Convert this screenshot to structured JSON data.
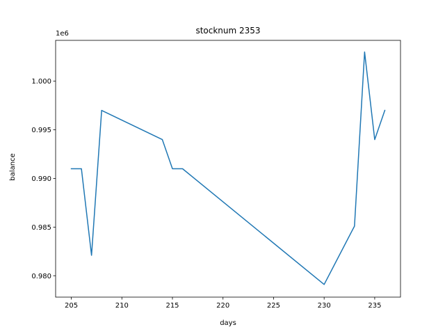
{
  "chart_data": {
    "type": "line",
    "title": "stocknum 2353",
    "xlabel": "days",
    "ylabel": "balance",
    "y_offset_text": "1e6",
    "xlim": [
      203.45,
      237.55
    ],
    "ylim": [
      977800,
      1004200
    ],
    "x_ticks": [
      205,
      210,
      215,
      220,
      225,
      230,
      235
    ],
    "x_tick_labels": [
      "205",
      "210",
      "215",
      "220",
      "225",
      "230",
      "235"
    ],
    "y_ticks": [
      980000,
      985000,
      990000,
      995000,
      1000000
    ],
    "y_tick_labels": [
      "0.980",
      "0.985",
      "0.990",
      "0.995",
      "1.000"
    ],
    "grid": false,
    "series": [
      {
        "color": "#1f77b4",
        "x": [
          205,
          206,
          207,
          208,
          214,
          215,
          216,
          230,
          233,
          234,
          235,
          236
        ],
        "y": [
          991000,
          991000,
          982100,
          997000,
          994000,
          991000,
          991000,
          979100,
          985100,
          1003000,
          994000,
          997000
        ]
      }
    ]
  }
}
